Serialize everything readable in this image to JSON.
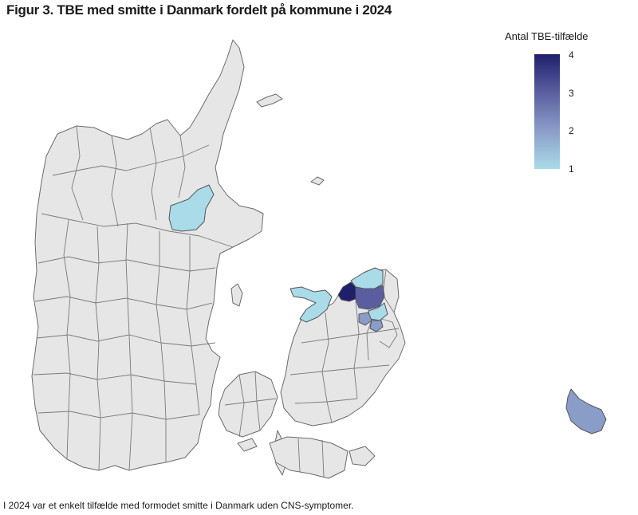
{
  "figure": {
    "title": "Figur 3. TBE med smitte  i Danmark fordelt på kommune i 2024",
    "footnote": "I 2024 var et enkelt tilfælde med formodet smitte i Danmark uden CNS-symptomer."
  },
  "legend": {
    "title": "Antal TBE-tilfælde",
    "ticks": [
      "4",
      "3",
      "2",
      "1"
    ],
    "scale_min": 1,
    "scale_max": 4,
    "color_low": "#a9dbe9",
    "color_high": "#1f1f6b"
  },
  "colors": {
    "no_cases_fill": "#e6e6e6",
    "border": "#6b6b6b"
  },
  "regions": [
    {
      "name": "Mariagerfjord-area",
      "cases": 1
    },
    {
      "name": "Odsherred-area",
      "cases": 1
    },
    {
      "name": "Gribskov-area",
      "cases": 1
    },
    {
      "name": "Halsnæs-area",
      "cases": 4
    },
    {
      "name": "Hillerød-area",
      "cases": 3
    },
    {
      "name": "Furesø-area",
      "cases": 2
    },
    {
      "name": "Rudersdal-area",
      "cases": 1
    },
    {
      "name": "Ballerup-area",
      "cases": 2
    },
    {
      "name": "Bornholm",
      "cases": 2
    }
  ]
}
